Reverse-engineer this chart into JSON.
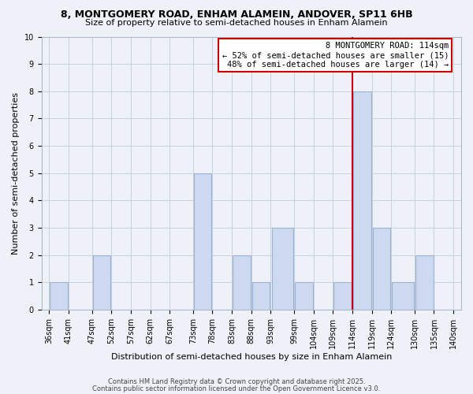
{
  "title": "8, MONTGOMERY ROAD, ENHAM ALAMEIN, ANDOVER, SP11 6HB",
  "subtitle": "Size of property relative to semi-detached houses in Enham Alamein",
  "xlabel": "Distribution of semi-detached houses by size in Enham Alamein",
  "ylabel": "Number of semi-detached properties",
  "footnote1": "Contains HM Land Registry data © Crown copyright and database right 2025.",
  "footnote2": "Contains public sector information licensed under the Open Government Licence v3.0.",
  "bar_edges": [
    36,
    41,
    47,
    52,
    57,
    62,
    67,
    73,
    78,
    83,
    88,
    93,
    99,
    104,
    109,
    114,
    119,
    124,
    130,
    135,
    140
  ],
  "bar_labels": [
    "36sqm",
    "41sqm",
    "47sqm",
    "52sqm",
    "57sqm",
    "62sqm",
    "67sqm",
    "73sqm",
    "78sqm",
    "83sqm",
    "88sqm",
    "93sqm",
    "99sqm",
    "104sqm",
    "109sqm",
    "114sqm",
    "119sqm",
    "124sqm",
    "130sqm",
    "135sqm",
    "140sqm"
  ],
  "bar_heights": [
    1,
    0,
    2,
    0,
    0,
    0,
    0,
    5,
    0,
    2,
    1,
    3,
    1,
    0,
    1,
    8,
    3,
    1,
    2,
    0
  ],
  "bar_color": "#ccd9ef",
  "bar_edgecolor": "#9ab3d5",
  "grid_color": "#c8d0dc",
  "bg_color": "#eef2f8",
  "vline_x": 114,
  "vline_color": "#cc0000",
  "ylim": [
    0,
    10
  ],
  "yticks": [
    0,
    1,
    2,
    3,
    4,
    5,
    6,
    7,
    8,
    9,
    10
  ],
  "annotation_title": "8 MONTGOMERY ROAD: 114sqm",
  "annotation_line1": "← 52% of semi-detached houses are smaller (15)",
  "annotation_line2": "48% of semi-detached houses are larger (14) →",
  "annotation_box_color": "#ffffff",
  "annotation_box_edgecolor": "#cc0000",
  "title_fontsize": 9,
  "subtitle_fontsize": 8,
  "axis_label_fontsize": 8,
  "tick_fontsize": 7,
  "annotation_fontsize": 7.5,
  "footnote_fontsize": 6
}
